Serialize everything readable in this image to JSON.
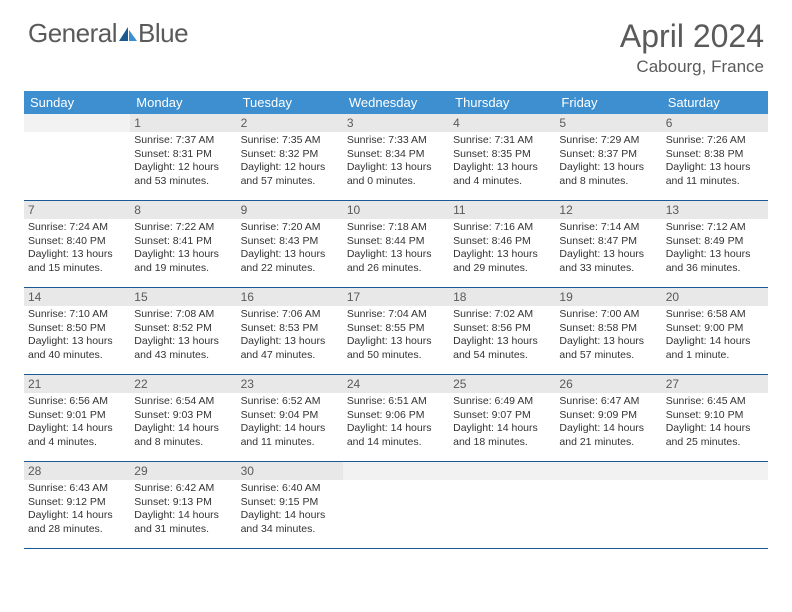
{
  "logo": {
    "text1": "General",
    "text2": "Blue"
  },
  "title": "April 2024",
  "location": "Cabourg, France",
  "colors": {
    "header_bg": "#3d8fcf",
    "border": "#1a5a92",
    "daynum_bg": "#e8e8e8",
    "text_gray": "#5a5a5a"
  },
  "weekdays": [
    "Sunday",
    "Monday",
    "Tuesday",
    "Wednesday",
    "Thursday",
    "Friday",
    "Saturday"
  ],
  "weeks": [
    [
      {
        "n": "",
        "sr": "",
        "ss": "",
        "dl": ""
      },
      {
        "n": "1",
        "sr": "Sunrise: 7:37 AM",
        "ss": "Sunset: 8:31 PM",
        "dl": "Daylight: 12 hours and 53 minutes."
      },
      {
        "n": "2",
        "sr": "Sunrise: 7:35 AM",
        "ss": "Sunset: 8:32 PM",
        "dl": "Daylight: 12 hours and 57 minutes."
      },
      {
        "n": "3",
        "sr": "Sunrise: 7:33 AM",
        "ss": "Sunset: 8:34 PM",
        "dl": "Daylight: 13 hours and 0 minutes."
      },
      {
        "n": "4",
        "sr": "Sunrise: 7:31 AM",
        "ss": "Sunset: 8:35 PM",
        "dl": "Daylight: 13 hours and 4 minutes."
      },
      {
        "n": "5",
        "sr": "Sunrise: 7:29 AM",
        "ss": "Sunset: 8:37 PM",
        "dl": "Daylight: 13 hours and 8 minutes."
      },
      {
        "n": "6",
        "sr": "Sunrise: 7:26 AM",
        "ss": "Sunset: 8:38 PM",
        "dl": "Daylight: 13 hours and 11 minutes."
      }
    ],
    [
      {
        "n": "7",
        "sr": "Sunrise: 7:24 AM",
        "ss": "Sunset: 8:40 PM",
        "dl": "Daylight: 13 hours and 15 minutes."
      },
      {
        "n": "8",
        "sr": "Sunrise: 7:22 AM",
        "ss": "Sunset: 8:41 PM",
        "dl": "Daylight: 13 hours and 19 minutes."
      },
      {
        "n": "9",
        "sr": "Sunrise: 7:20 AM",
        "ss": "Sunset: 8:43 PM",
        "dl": "Daylight: 13 hours and 22 minutes."
      },
      {
        "n": "10",
        "sr": "Sunrise: 7:18 AM",
        "ss": "Sunset: 8:44 PM",
        "dl": "Daylight: 13 hours and 26 minutes."
      },
      {
        "n": "11",
        "sr": "Sunrise: 7:16 AM",
        "ss": "Sunset: 8:46 PM",
        "dl": "Daylight: 13 hours and 29 minutes."
      },
      {
        "n": "12",
        "sr": "Sunrise: 7:14 AM",
        "ss": "Sunset: 8:47 PM",
        "dl": "Daylight: 13 hours and 33 minutes."
      },
      {
        "n": "13",
        "sr": "Sunrise: 7:12 AM",
        "ss": "Sunset: 8:49 PM",
        "dl": "Daylight: 13 hours and 36 minutes."
      }
    ],
    [
      {
        "n": "14",
        "sr": "Sunrise: 7:10 AM",
        "ss": "Sunset: 8:50 PM",
        "dl": "Daylight: 13 hours and 40 minutes."
      },
      {
        "n": "15",
        "sr": "Sunrise: 7:08 AM",
        "ss": "Sunset: 8:52 PM",
        "dl": "Daylight: 13 hours and 43 minutes."
      },
      {
        "n": "16",
        "sr": "Sunrise: 7:06 AM",
        "ss": "Sunset: 8:53 PM",
        "dl": "Daylight: 13 hours and 47 minutes."
      },
      {
        "n": "17",
        "sr": "Sunrise: 7:04 AM",
        "ss": "Sunset: 8:55 PM",
        "dl": "Daylight: 13 hours and 50 minutes."
      },
      {
        "n": "18",
        "sr": "Sunrise: 7:02 AM",
        "ss": "Sunset: 8:56 PM",
        "dl": "Daylight: 13 hours and 54 minutes."
      },
      {
        "n": "19",
        "sr": "Sunrise: 7:00 AM",
        "ss": "Sunset: 8:58 PM",
        "dl": "Daylight: 13 hours and 57 minutes."
      },
      {
        "n": "20",
        "sr": "Sunrise: 6:58 AM",
        "ss": "Sunset: 9:00 PM",
        "dl": "Daylight: 14 hours and 1 minute."
      }
    ],
    [
      {
        "n": "21",
        "sr": "Sunrise: 6:56 AM",
        "ss": "Sunset: 9:01 PM",
        "dl": "Daylight: 14 hours and 4 minutes."
      },
      {
        "n": "22",
        "sr": "Sunrise: 6:54 AM",
        "ss": "Sunset: 9:03 PM",
        "dl": "Daylight: 14 hours and 8 minutes."
      },
      {
        "n": "23",
        "sr": "Sunrise: 6:52 AM",
        "ss": "Sunset: 9:04 PM",
        "dl": "Daylight: 14 hours and 11 minutes."
      },
      {
        "n": "24",
        "sr": "Sunrise: 6:51 AM",
        "ss": "Sunset: 9:06 PM",
        "dl": "Daylight: 14 hours and 14 minutes."
      },
      {
        "n": "25",
        "sr": "Sunrise: 6:49 AM",
        "ss": "Sunset: 9:07 PM",
        "dl": "Daylight: 14 hours and 18 minutes."
      },
      {
        "n": "26",
        "sr": "Sunrise: 6:47 AM",
        "ss": "Sunset: 9:09 PM",
        "dl": "Daylight: 14 hours and 21 minutes."
      },
      {
        "n": "27",
        "sr": "Sunrise: 6:45 AM",
        "ss": "Sunset: 9:10 PM",
        "dl": "Daylight: 14 hours and 25 minutes."
      }
    ],
    [
      {
        "n": "28",
        "sr": "Sunrise: 6:43 AM",
        "ss": "Sunset: 9:12 PM",
        "dl": "Daylight: 14 hours and 28 minutes."
      },
      {
        "n": "29",
        "sr": "Sunrise: 6:42 AM",
        "ss": "Sunset: 9:13 PM",
        "dl": "Daylight: 14 hours and 31 minutes."
      },
      {
        "n": "30",
        "sr": "Sunrise: 6:40 AM",
        "ss": "Sunset: 9:15 PM",
        "dl": "Daylight: 14 hours and 34 minutes."
      },
      {
        "n": "",
        "sr": "",
        "ss": "",
        "dl": ""
      },
      {
        "n": "",
        "sr": "",
        "ss": "",
        "dl": ""
      },
      {
        "n": "",
        "sr": "",
        "ss": "",
        "dl": ""
      },
      {
        "n": "",
        "sr": "",
        "ss": "",
        "dl": ""
      }
    ]
  ]
}
